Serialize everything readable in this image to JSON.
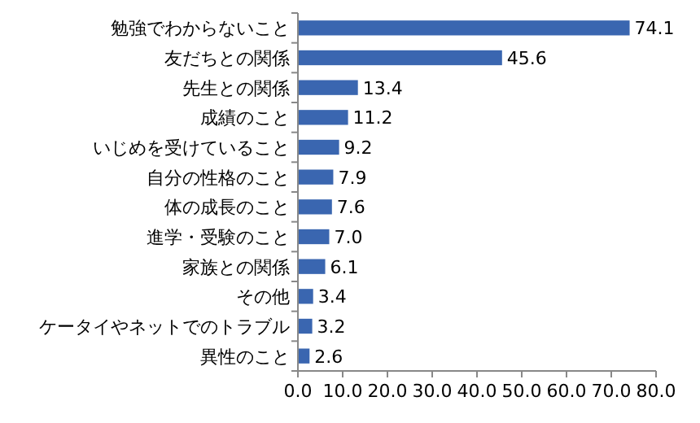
{
  "chart_data": {
    "type": "bar",
    "orientation": "horizontal",
    "categories": [
      "勉強でわからないこと",
      "友だちとの関係",
      "先生との関係",
      "成績のこと",
      "いじめを受けていること",
      "自分の性格のこと",
      "体の成長のこと",
      "進学・受験のこと",
      "家族との関係",
      "その他",
      "ケータイやネットでのトラブル",
      "異性のこと"
    ],
    "values": [
      74.1,
      45.6,
      13.4,
      11.2,
      9.2,
      7.9,
      7.6,
      7.0,
      6.1,
      3.4,
      3.2,
      2.6
    ],
    "value_labels": [
      "74.1",
      "45.6",
      "13.4",
      "11.2",
      "9.2",
      "7.9",
      "7.6",
      "7.0",
      "6.1",
      "3.4",
      "3.2",
      "2.6"
    ],
    "color": "#3a66b0",
    "xlim": [
      0,
      80
    ],
    "xticks": [
      {
        "value": 0,
        "label": "0.0"
      },
      {
        "value": 10,
        "label": "10.0"
      },
      {
        "value": 20,
        "label": "20.0"
      },
      {
        "value": 30,
        "label": "30.0"
      },
      {
        "value": 40,
        "label": "40.0"
      },
      {
        "value": 50,
        "label": "50.0"
      },
      {
        "value": 60,
        "label": "60.0"
      },
      {
        "value": 70,
        "label": "70.0"
      },
      {
        "value": 80,
        "label": "80.0"
      }
    ],
    "data_labels": true
  }
}
